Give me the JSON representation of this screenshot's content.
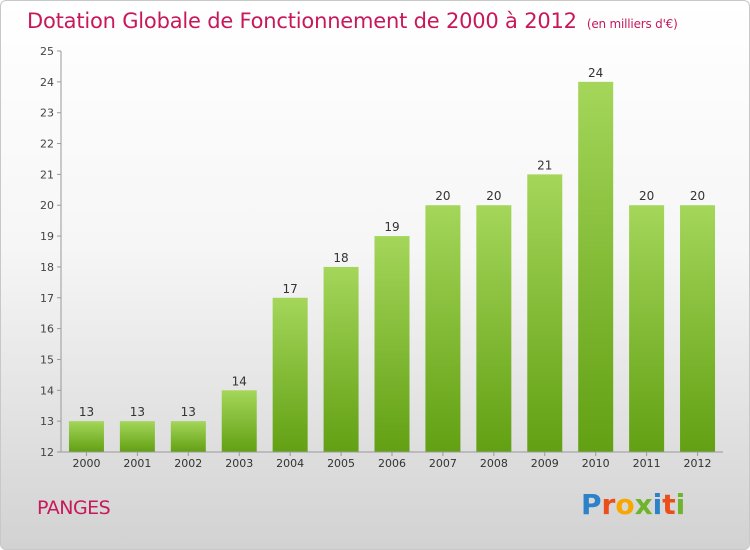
{
  "header": {
    "title": "Dotation Globale de Fonctionnement de 2000 à 2012",
    "unit": "(en milliers d'€)"
  },
  "commune": "PANGES",
  "logo": {
    "text": "Proxiti",
    "letters": [
      {
        "ch": "P",
        "color": "#2b82c9"
      },
      {
        "ch": "r",
        "color": "#e94e1b"
      },
      {
        "ch": "o",
        "color": "#f6a800"
      },
      {
        "ch": "x",
        "color": "#6fb42c"
      },
      {
        "ch": "i",
        "color": "#2b82c9"
      },
      {
        "ch": "t",
        "color": "#e94e1b"
      },
      {
        "ch": "i",
        "color": "#6fb42c"
      }
    ]
  },
  "colors": {
    "accent": "#c8185a",
    "bar_light": "#a4d65a",
    "bar_dark": "#62a013"
  },
  "chart_data": {
    "type": "bar",
    "categories": [
      "2000",
      "2001",
      "2002",
      "2003",
      "2004",
      "2005",
      "2006",
      "2007",
      "2008",
      "2009",
      "2010",
      "2011",
      "2012"
    ],
    "values": [
      13,
      13,
      13,
      14,
      17,
      18,
      19,
      20,
      20,
      21,
      24,
      20,
      20
    ],
    "title": "Dotation Globale de Fonctionnement de 2000 à 2012",
    "ylabel": "(en milliers d'€)",
    "xlabel": "",
    "ylim": [
      12,
      25
    ],
    "yticks": [
      12,
      13,
      14,
      15,
      16,
      17,
      18,
      19,
      20,
      21,
      22,
      23,
      24,
      25
    ],
    "grid": false,
    "data_labels": true
  }
}
